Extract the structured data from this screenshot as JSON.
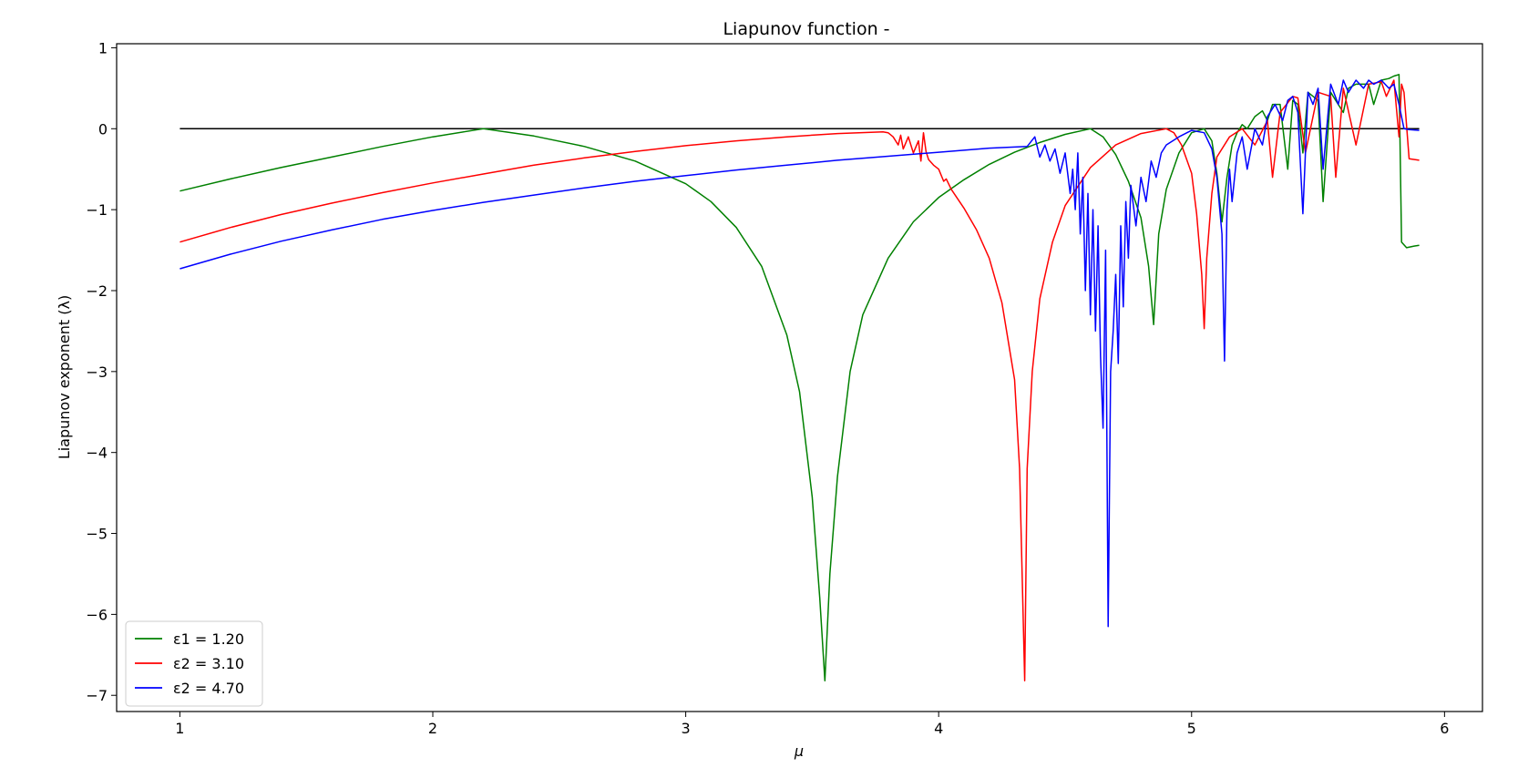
{
  "chart_data": {
    "type": "line",
    "title": "Liapunov function -",
    "xlabel": "μ",
    "ylabel": "Liapunov exponent (λ)",
    "xlim": [
      0.75,
      6.15
    ],
    "ylim": [
      -7.2,
      1.05
    ],
    "x_ticks": [
      1,
      2,
      3,
      4,
      5,
      6
    ],
    "y_ticks": [
      1,
      0,
      -1,
      -2,
      -3,
      -4,
      -5,
      -6,
      -7
    ],
    "x_tick_labels": [
      "1",
      "2",
      "3",
      "4",
      "5",
      "6"
    ],
    "y_tick_labels": [
      "1",
      "0",
      "−1",
      "−2",
      "−3",
      "−4",
      "−5",
      "−6",
      "−7"
    ],
    "grid": false,
    "legend_position": "lower-left",
    "reference_line": {
      "y": 0,
      "x_range": [
        1,
        5.9
      ],
      "color": "#000000"
    },
    "series": [
      {
        "name": "ε1 = 1.20",
        "color": "#008000",
        "x": [
          1.0,
          1.2,
          1.4,
          1.6,
          1.8,
          2.0,
          2.2,
          2.4,
          2.6,
          2.8,
          3.0,
          3.1,
          3.2,
          3.3,
          3.4,
          3.45,
          3.5,
          3.53,
          3.55,
          3.57,
          3.6,
          3.65,
          3.7,
          3.8,
          3.9,
          4.0,
          4.1,
          4.2,
          4.3,
          4.4,
          4.5,
          4.6,
          4.65,
          4.7,
          4.75,
          4.8,
          4.83,
          4.85,
          4.87,
          4.9,
          4.95,
          5.0,
          5.05,
          5.08,
          5.1,
          5.12,
          5.14,
          5.16,
          5.18,
          5.2,
          5.22,
          5.25,
          5.28,
          5.3,
          5.32,
          5.35,
          5.38,
          5.4,
          5.42,
          5.44,
          5.46,
          5.5,
          5.52,
          5.55,
          5.6,
          5.62,
          5.65,
          5.7,
          5.72,
          5.75,
          5.78,
          5.8,
          5.82,
          5.83,
          5.85,
          5.88,
          5.9
        ],
        "y": [
          -0.77,
          -0.62,
          -0.48,
          -0.35,
          -0.22,
          -0.1,
          0.0,
          -0.09,
          -0.22,
          -0.4,
          -0.68,
          -0.9,
          -1.22,
          -1.7,
          -2.55,
          -3.25,
          -4.55,
          -5.8,
          -6.82,
          -5.5,
          -4.3,
          -3.0,
          -2.3,
          -1.6,
          -1.15,
          -0.85,
          -0.63,
          -0.44,
          -0.29,
          -0.17,
          -0.07,
          0.0,
          -0.1,
          -0.32,
          -0.65,
          -1.1,
          -1.7,
          -2.42,
          -1.3,
          -0.75,
          -0.3,
          -0.05,
          0.0,
          -0.15,
          -0.55,
          -1.15,
          -0.6,
          -0.2,
          -0.05,
          0.05,
          0.0,
          0.15,
          0.22,
          0.1,
          0.3,
          0.3,
          -0.5,
          0.35,
          0.3,
          -0.3,
          0.45,
          0.35,
          -0.9,
          0.45,
          0.2,
          0.5,
          0.55,
          0.55,
          0.3,
          0.6,
          0.62,
          0.65,
          0.67,
          -1.4,
          -1.47,
          -1.45,
          -1.44
        ]
      },
      {
        "name": "ε2 = 3.10",
        "color": "#ff0000",
        "x": [
          1.0,
          1.2,
          1.4,
          1.6,
          1.8,
          2.0,
          2.2,
          2.4,
          2.6,
          2.8,
          3.0,
          3.2,
          3.4,
          3.6,
          3.78,
          3.8,
          3.82,
          3.84,
          3.85,
          3.86,
          3.88,
          3.9,
          3.92,
          3.93,
          3.94,
          3.95,
          3.96,
          3.98,
          4.0,
          4.02,
          4.03,
          4.05,
          4.1,
          4.15,
          4.2,
          4.25,
          4.3,
          4.32,
          4.34,
          4.35,
          4.37,
          4.4,
          4.45,
          4.5,
          4.6,
          4.7,
          4.8,
          4.9,
          4.93,
          4.96,
          5.0,
          5.02,
          5.04,
          5.05,
          5.06,
          5.08,
          5.1,
          5.15,
          5.2,
          5.25,
          5.3,
          5.32,
          5.35,
          5.4,
          5.42,
          5.45,
          5.5,
          5.55,
          5.57,
          5.6,
          5.65,
          5.7,
          5.75,
          5.77,
          5.8,
          5.82,
          5.83,
          5.84,
          5.86,
          5.9
        ],
        "y": [
          -1.4,
          -1.22,
          -1.06,
          -0.92,
          -0.79,
          -0.67,
          -0.56,
          -0.45,
          -0.36,
          -0.28,
          -0.21,
          -0.15,
          -0.1,
          -0.06,
          -0.04,
          -0.05,
          -0.1,
          -0.2,
          -0.08,
          -0.25,
          -0.1,
          -0.3,
          -0.15,
          -0.4,
          -0.05,
          -0.28,
          -0.38,
          -0.45,
          -0.5,
          -0.65,
          -0.62,
          -0.75,
          -0.98,
          -1.25,
          -1.6,
          -2.15,
          -3.1,
          -4.2,
          -6.82,
          -4.2,
          -3.0,
          -2.1,
          -1.4,
          -0.95,
          -0.48,
          -0.2,
          -0.06,
          0.0,
          -0.05,
          -0.2,
          -0.55,
          -1.05,
          -1.8,
          -2.47,
          -1.6,
          -0.8,
          -0.35,
          -0.1,
          0.0,
          -0.2,
          0.1,
          -0.6,
          0.2,
          0.4,
          0.38,
          -0.3,
          0.45,
          0.4,
          -0.6,
          0.5,
          -0.2,
          0.55,
          0.58,
          0.4,
          0.6,
          -0.1,
          0.55,
          0.45,
          -0.37,
          -0.39
        ]
      },
      {
        "name": "ε2 = 4.70",
        "color": "#0000ff",
        "x": [
          1.0,
          1.2,
          1.4,
          1.6,
          1.8,
          2.0,
          2.2,
          2.4,
          2.6,
          2.8,
          3.0,
          3.2,
          3.4,
          3.6,
          3.8,
          4.0,
          4.2,
          4.35,
          4.38,
          4.4,
          4.42,
          4.44,
          4.46,
          4.48,
          4.5,
          4.52,
          4.53,
          4.54,
          4.55,
          4.56,
          4.57,
          4.58,
          4.59,
          4.6,
          4.61,
          4.62,
          4.63,
          4.64,
          4.65,
          4.66,
          4.67,
          4.68,
          4.69,
          4.7,
          4.71,
          4.72,
          4.73,
          4.74,
          4.75,
          4.76,
          4.78,
          4.8,
          4.82,
          4.84,
          4.86,
          4.88,
          4.9,
          4.95,
          5.0,
          5.05,
          5.08,
          5.1,
          5.12,
          5.13,
          5.14,
          5.15,
          5.16,
          5.18,
          5.2,
          5.22,
          5.25,
          5.28,
          5.3,
          5.33,
          5.36,
          5.38,
          5.4,
          5.42,
          5.44,
          5.46,
          5.48,
          5.5,
          5.52,
          5.55,
          5.58,
          5.6,
          5.62,
          5.65,
          5.68,
          5.7,
          5.72,
          5.75,
          5.78,
          5.8,
          5.82,
          5.84,
          5.86,
          5.9
        ],
        "y": [
          -1.73,
          -1.55,
          -1.39,
          -1.25,
          -1.12,
          -1.01,
          -0.91,
          -0.82,
          -0.73,
          -0.65,
          -0.58,
          -0.51,
          -0.45,
          -0.39,
          -0.34,
          -0.29,
          -0.24,
          -0.22,
          -0.1,
          -0.35,
          -0.2,
          -0.4,
          -0.25,
          -0.55,
          -0.3,
          -0.8,
          -0.5,
          -1.0,
          -0.3,
          -1.3,
          -0.6,
          -2.0,
          -0.8,
          -2.3,
          -1.0,
          -2.5,
          -1.2,
          -2.8,
          -3.7,
          -1.5,
          -6.15,
          -3.0,
          -2.5,
          -1.8,
          -2.9,
          -1.2,
          -2.2,
          -0.9,
          -1.6,
          -0.7,
          -1.2,
          -0.6,
          -0.9,
          -0.4,
          -0.6,
          -0.3,
          -0.2,
          -0.1,
          -0.02,
          -0.05,
          -0.25,
          -0.6,
          -1.3,
          -2.87,
          -1.0,
          -0.5,
          -0.9,
          -0.3,
          -0.1,
          -0.5,
          0.0,
          -0.2,
          0.15,
          0.3,
          0.1,
          0.35,
          0.4,
          0.2,
          -1.05,
          0.45,
          0.3,
          0.5,
          -0.5,
          0.55,
          0.3,
          0.6,
          0.45,
          0.6,
          0.5,
          0.6,
          0.55,
          0.6,
          0.5,
          0.55,
          0.3,
          0.0,
          -0.01,
          -0.02
        ]
      }
    ]
  }
}
